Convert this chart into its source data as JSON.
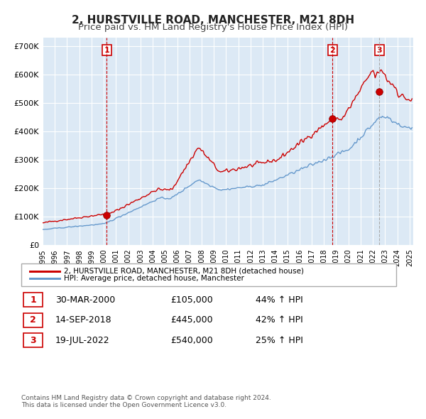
{
  "title": "2, HURSTVILLE ROAD, MANCHESTER, M21 8DH",
  "subtitle": "Price paid vs. HM Land Registry's House Price Index (HPI)",
  "title_fontsize": 11,
  "subtitle_fontsize": 9.5,
  "ylabel": "",
  "ylim": [
    0,
    730000
  ],
  "yticks": [
    0,
    100000,
    200000,
    300000,
    400000,
    500000,
    600000,
    700000
  ],
  "ytick_labels": [
    "£0",
    "£100K",
    "£200K",
    "£300K",
    "£400K",
    "£500K",
    "£600K",
    "£700K"
  ],
  "red_line_color": "#cc0000",
  "blue_line_color": "#6699cc",
  "background_color": "#dce9f5",
  "grid_color": "#ffffff",
  "legend_label_red": "2, HURSTVILLE ROAD, MANCHESTER, M21 8DH (detached house)",
  "legend_label_blue": "HPI: Average price, detached house, Manchester",
  "sale_points": [
    {
      "label": "1",
      "date_approx": 2000.25,
      "price": 105000,
      "vline_color": "#cc0000",
      "vline_style": "dashed"
    },
    {
      "label": "2",
      "date_approx": 2018.7,
      "price": 445000,
      "vline_color": "#cc0000",
      "vline_style": "dashed"
    },
    {
      "label": "3",
      "date_approx": 2022.54,
      "price": 540000,
      "vline_color": "#aaaaaa",
      "vline_style": "dashed"
    }
  ],
  "table_rows": [
    {
      "num": "1",
      "date": "30-MAR-2000",
      "price": "£105,000",
      "change": "44% ↑ HPI"
    },
    {
      "num": "2",
      "date": "14-SEP-2018",
      "price": "£445,000",
      "change": "42% ↑ HPI"
    },
    {
      "num": "3",
      "date": "19-JUL-2022",
      "price": "£540,000",
      "change": "25% ↑ HPI"
    }
  ],
  "footer": "Contains HM Land Registry data © Crown copyright and database right 2024.\nThis data is licensed under the Open Government Licence v3.0."
}
